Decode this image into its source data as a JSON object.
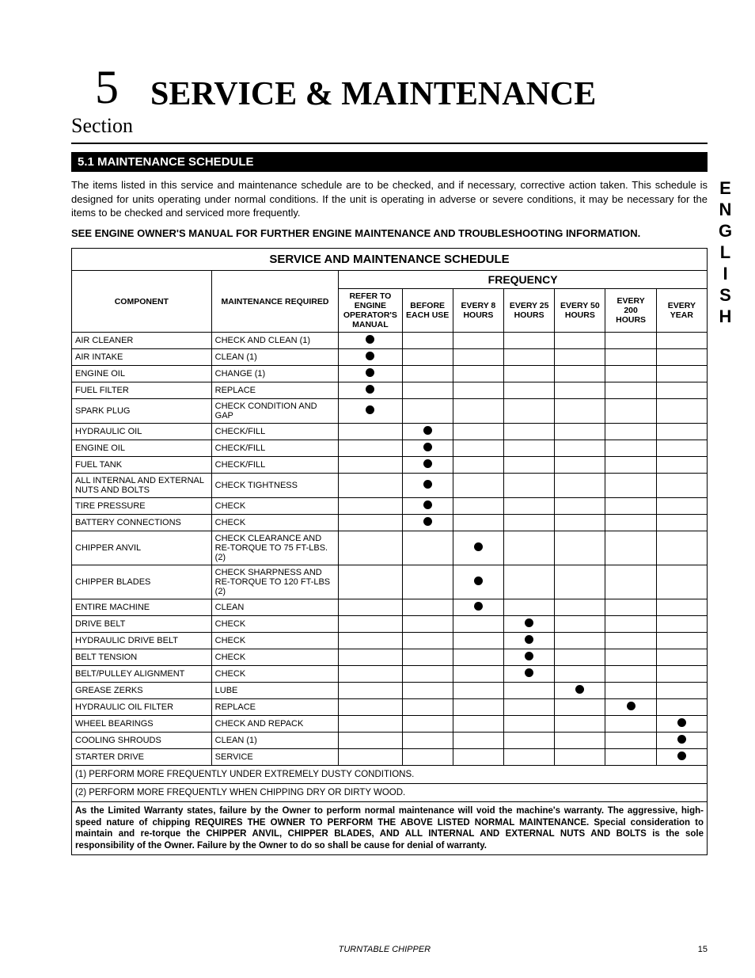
{
  "side_label": "ENGLISH",
  "section_number": "5",
  "title": "SERVICE & MAINTENANCE",
  "section_label": "Section",
  "subsection_heading": "5.1  MAINTENANCE SCHEDULE",
  "intro_text": "The items listed in this service and maintenance schedule are to be checked, and if necessary, corrective action taken. This schedule is designed for units operating under normal conditions. If the unit is operating in adverse or severe conditions, it may be necessary for the items to be checked and serviced more frequently.",
  "see_note": "SEE ENGINE OWNER'S MANUAL FOR FURTHER ENGINE MAINTENANCE AND TROUBLESHOOTING INFORMATION.",
  "table": {
    "title": "SERVICE AND MAINTENANCE SCHEDULE",
    "frequency_label": "FREQUENCY",
    "col_component": "COMPONENT",
    "col_maintenance": "MAINTENANCE REQUIRED",
    "freq_cols": [
      "REFER TO ENGINE OPERATOR'S MANUAL",
      "BEFORE EACH USE",
      "EVERY 8 HOURS",
      "EVERY 25 HOURS",
      "EVERY 50 HOURS",
      "EVERY 200 HOURS",
      "EVERY YEAR"
    ],
    "rows": [
      {
        "component": "AIR CLEANER",
        "maintenance": "CHECK AND CLEAN (1)",
        "freq": 0
      },
      {
        "component": "AIR INTAKE",
        "maintenance": "CLEAN (1)",
        "freq": 0
      },
      {
        "component": "ENGINE OIL",
        "maintenance": "CHANGE (1)",
        "freq": 0
      },
      {
        "component": "FUEL FILTER",
        "maintenance": "REPLACE",
        "freq": 0
      },
      {
        "component": "SPARK PLUG",
        "maintenance": "CHECK CONDITION AND GAP",
        "freq": 0
      },
      {
        "component": "HYDRAULIC OIL",
        "maintenance": "CHECK/FILL",
        "freq": 1
      },
      {
        "component": "ENGINE OIL",
        "maintenance": "CHECK/FILL",
        "freq": 1
      },
      {
        "component": "FUEL TANK",
        "maintenance": "CHECK/FILL",
        "freq": 1
      },
      {
        "component": "ALL INTERNAL AND EXTERNAL NUTS AND BOLTS",
        "maintenance": "CHECK TIGHTNESS",
        "freq": 1
      },
      {
        "component": "TIRE PRESSURE",
        "maintenance": "CHECK",
        "freq": 1
      },
      {
        "component": "BATTERY CONNECTIONS",
        "maintenance": "CHECK",
        "freq": 1
      },
      {
        "component": "CHIPPER ANVIL",
        "maintenance": "CHECK CLEARANCE AND RE-TORQUE TO 75 FT-LBS. (2)",
        "freq": 2
      },
      {
        "component": "CHIPPER BLADES",
        "maintenance": "CHECK SHARPNESS AND RE-TORQUE TO 120 FT-LBS  (2)",
        "freq": 2
      },
      {
        "component": "ENTIRE MACHINE",
        "maintenance": "CLEAN",
        "freq": 2
      },
      {
        "component": "DRIVE BELT",
        "maintenance": "CHECK",
        "freq": 3
      },
      {
        "component": "HYDRAULIC DRIVE BELT",
        "maintenance": "CHECK",
        "freq": 3
      },
      {
        "component": "BELT TENSION",
        "maintenance": "CHECK",
        "freq": 3
      },
      {
        "component": "BELT/PULLEY ALIGNMENT",
        "maintenance": "CHECK",
        "freq": 3
      },
      {
        "component": "GREASE ZERKS",
        "maintenance": "LUBE",
        "freq": 4
      },
      {
        "component": "HYDRAULIC OIL FILTER",
        "maintenance": "REPLACE",
        "freq": 5
      },
      {
        "component": "WHEEL BEARINGS",
        "maintenance": "CHECK AND REPACK",
        "freq": 6
      },
      {
        "component": "COOLING SHROUDS",
        "maintenance": "CLEAN (1)",
        "freq": 6
      },
      {
        "component": "STARTER DRIVE",
        "maintenance": "SERVICE",
        "freq": 6
      }
    ],
    "footnotes": [
      "(1) PERFORM MORE FREQUENTLY UNDER EXTREMELY DUSTY CONDITIONS.",
      "(2) PERFORM MORE FREQUENTLY WHEN CHIPPING DRY OR DIRTY WOOD."
    ],
    "warranty_note": "As the Limited Warranty states, failure by the Owner to perform normal maintenance will void the machine's warranty. The aggressive, high-speed nature of chipping REQUIRES THE OWNER TO PERFORM THE ABOVE LISTED NORMAL MAINTENANCE. Special consideration to maintain and re-torque the CHIPPER ANVIL, CHIPPER BLADES, AND ALL INTERNAL AND EXTERNAL NUTS AND BOLTS is the sole responsibility of the Owner. Failure by the Owner to do so shall be cause for denial of warranty.",
    "col_widths_pct": [
      22,
      20,
      10,
      8,
      8,
      8,
      8,
      8,
      8
    ]
  },
  "footer": {
    "title": "TURNTABLE CHIPPER",
    "page": "15"
  },
  "colors": {
    "bg": "#ffffff",
    "text": "#000000",
    "heading_bg": "#000000",
    "heading_fg": "#ffffff"
  }
}
